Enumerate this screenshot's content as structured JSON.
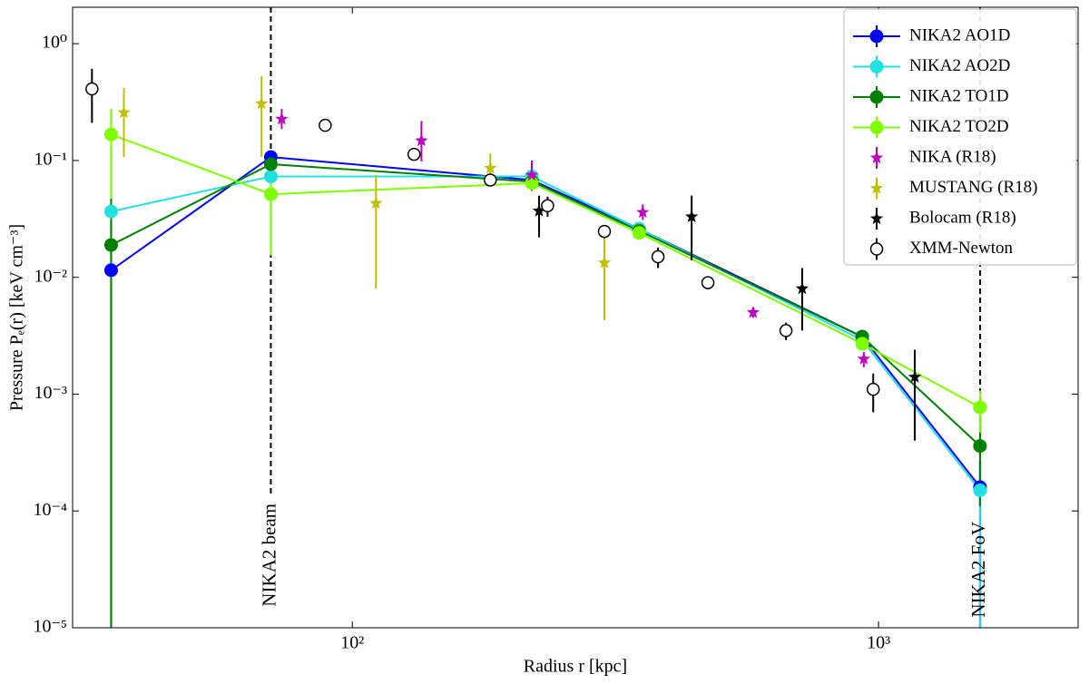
{
  "chart_data": {
    "type": "line",
    "xlabel": "Radius r [kpc]",
    "ylabel": "Pressure Pₑ(r) [keV cm⁻³]",
    "xlog": true,
    "ylog": true,
    "xlim": [
      29.4,
      2395
    ],
    "ylim": [
      1e-05,
      2.05
    ],
    "xticks": [
      {
        "value": 100,
        "label": "10²"
      },
      {
        "value": 1000,
        "label": "10³"
      }
    ],
    "yticks": [
      {
        "value": 1e-05,
        "label": "10⁻⁵"
      },
      {
        "value": 0.0001,
        "label": "10⁻⁴"
      },
      {
        "value": 0.001,
        "label": "10⁻³"
      },
      {
        "value": 0.01,
        "label": "10⁻²"
      },
      {
        "value": 0.1,
        "label": "10⁻¹"
      },
      {
        "value": 1,
        "label": "10⁰"
      }
    ],
    "legend": "upper right",
    "vlines": [
      {
        "x": 70,
        "label": "NIKA2 beam"
      },
      {
        "x": 1560,
        "label": "NIKA2 FoV"
      }
    ],
    "series": [
      {
        "name": "NIKA2 AO1D",
        "color": "#0000ff",
        "marker": "circle",
        "line": true,
        "x": [
          34.8,
          70,
          219.3,
          350.6,
          931,
          1559
        ],
        "values": [
          0.0115,
          0.107,
          0.068,
          0.026,
          0.0031,
          0.00016
        ],
        "yerr": [
          [
            0.0115,
            0.045
          ],
          [
            0.01,
            0.01
          ],
          [
            0.005,
            0.005
          ],
          [
            0.002,
            0.002
          ],
          [
            0.0003,
            0.0003
          ],
          [
            0.00016,
            0.0001
          ]
        ]
      },
      {
        "name": "NIKA2 AO2D",
        "color": "#22e0e0",
        "marker": "circle",
        "line": true,
        "x": [
          34.8,
          70,
          219.3,
          350.6,
          931,
          1559
        ],
        "values": [
          0.0366,
          0.073,
          0.073,
          0.026,
          0.0029,
          0.00015
        ],
        "yerr": [
          [
            0.01,
            0.01
          ],
          [
            0.01,
            0.01
          ],
          [
            0.005,
            0.005
          ],
          [
            0.002,
            0.002
          ],
          [
            0.0003,
            0.0003
          ],
          [
            0.00015,
            0.0001
          ]
        ]
      },
      {
        "name": "NIKA2 TO1D",
        "color": "#008000",
        "marker": "circle",
        "line": true,
        "x": [
          34.8,
          70,
          219.3,
          350.6,
          931,
          1559
        ],
        "values": [
          0.0189,
          0.093,
          0.066,
          0.025,
          0.0031,
          0.00036
        ],
        "yerr": [
          [
            0.0189,
            0.04
          ],
          [
            0.01,
            0.01
          ],
          [
            0.005,
            0.005
          ],
          [
            0.002,
            0.002
          ],
          [
            0.0003,
            0.0003
          ],
          [
            0.00025,
            0.0003
          ]
        ]
      },
      {
        "name": "NIKA2 TO2D",
        "color": "#7fff00",
        "marker": "circle",
        "line": true,
        "x": [
          34.8,
          70,
          219.3,
          350.6,
          931,
          1559
        ],
        "values": [
          0.167,
          0.0514,
          0.064,
          0.024,
          0.0027,
          0.00077
        ],
        "yerr": [
          [
            0.12,
            0.11
          ],
          [
            0.036,
            0.07
          ],
          [
            0.005,
            0.005
          ],
          [
            0.002,
            0.002
          ],
          [
            0.0003,
            0.0003
          ],
          [
            0.0003,
            0.0003
          ]
        ]
      },
      {
        "name": "NIKA (R18)",
        "color": "#bf00bf",
        "marker": "star",
        "line": false,
        "x": [
          73.4,
          135.3,
          219.3,
          356.4,
          577.7,
          937.6
        ],
        "values": [
          0.226,
          0.148,
          0.075,
          0.036,
          0.005,
          0.002
        ],
        "yerr": [
          [
            0.04,
            0.05
          ],
          [
            0.05,
            0.07
          ],
          [
            0.02,
            0.025
          ],
          [
            0.005,
            0.006
          ],
          [
            0.0005,
            0.0005
          ],
          [
            0.0003,
            0.0003
          ]
        ]
      },
      {
        "name": "MUSTANG (R18)",
        "color": "#bfbf00",
        "marker": "star",
        "line": false,
        "x": [
          36.8,
          67.2,
          110.9,
          182.9,
          301.3
        ],
        "values": [
          0.257,
          0.307,
          0.043,
          0.086,
          0.0133
        ],
        "yerr": [
          [
            0.15,
            0.16
          ],
          [
            0.2,
            0.22
          ],
          [
            0.035,
            0.032
          ],
          [
            0.021,
            0.029
          ],
          [
            0.009,
            0.013
          ]
        ]
      },
      {
        "name": "Bolocam (R18)",
        "color": "#000000",
        "marker": "star",
        "line": false,
        "x": [
          226.4,
          441.4,
          716,
          1172
        ],
        "values": [
          0.037,
          0.033,
          0.008,
          0.0014
        ],
        "yerr": [
          [
            0.015,
            0.013
          ],
          [
            0.019,
            0.017
          ],
          [
            0.0045,
            0.004
          ],
          [
            0.001,
            0.001
          ]
        ]
      },
      {
        "name": "XMM-Newton",
        "color": "#000000",
        "marker": "open-circle",
        "line": false,
        "x": [
          32.0,
          88.8,
          131,
          182.9,
          235,
          301.3,
          381,
          474,
          667,
          977
        ],
        "values": [
          0.41,
          0.2,
          0.113,
          0.068,
          0.041,
          0.0247,
          0.015,
          0.009,
          0.0035,
          0.0011
        ],
        "yerr": [
          [
            0.2,
            0.2
          ],
          [
            0.02,
            0.02
          ],
          [
            0.01,
            0.01
          ],
          [
            0.003,
            0.003
          ],
          [
            0.008,
            0.008
          ],
          [
            0.003,
            0.003
          ],
          [
            0.003,
            0.003
          ],
          [
            0.001,
            0.001
          ],
          [
            0.0006,
            0.0006
          ],
          [
            0.0004,
            0.0004
          ]
        ]
      }
    ]
  }
}
